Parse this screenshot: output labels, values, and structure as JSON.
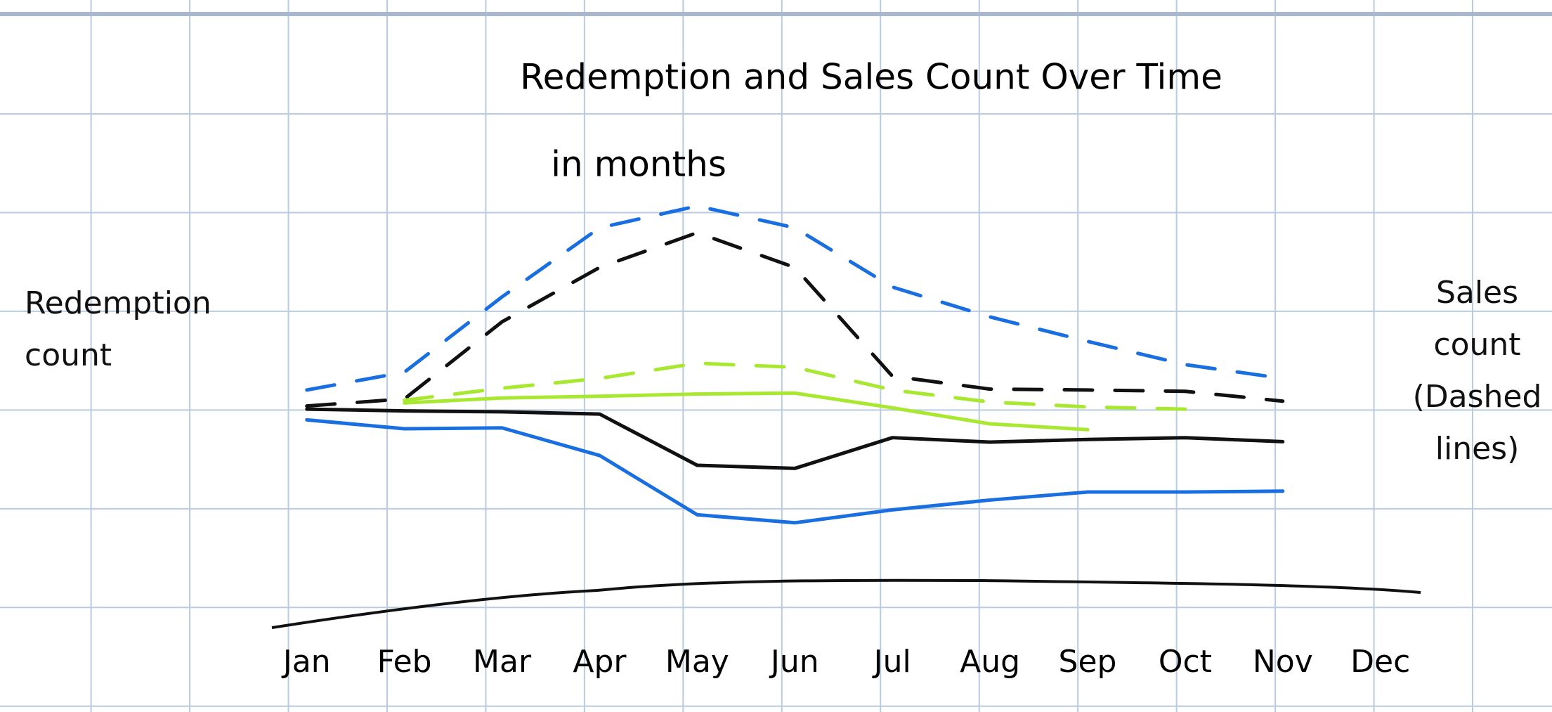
{
  "chart_data": {
    "type": "line",
    "title": "Redemption and Sales Count Over Time",
    "subtitle": "in months",
    "y_label": "Redemption count",
    "y2_label": "Sales count (Dashed lines)",
    "categories": [
      "Jan",
      "Feb",
      "Mar",
      "Apr",
      "May",
      "Jun",
      "Jul",
      "Aug",
      "Sep",
      "Oct",
      "Nov",
      "Dec"
    ],
    "ylim": [
      0,
      100
    ],
    "y2lim": [
      0,
      100
    ],
    "series": [
      {
        "color": "#111111",
        "values": [
          50.4,
          50,
          49.8,
          49.3,
          37.8,
          37.1,
          44,
          43,
          43.6,
          44,
          43.1,
          null
        ]
      },
      {
        "color": "#1a6fe0",
        "values": [
          48,
          46,
          46.2,
          40,
          26.7,
          24.9,
          27.8,
          30,
          31.8,
          31.8,
          32,
          null
        ]
      },
      {
        "color": "#a8e830",
        "values": [
          null,
          51.8,
          52.9,
          53.3,
          53.8,
          54,
          50.7,
          47.1,
          45.8,
          null,
          null,
          null
        ]
      },
      {
        "color": "#111111",
        "axis": "y2",
        "dashed": true,
        "values": [
          51.1,
          52.7,
          70,
          82.2,
          90,
          82.2,
          57.8,
          54.9,
          54.7,
          54.4,
          52.2,
          null
        ]
      },
      {
        "color": "#1a6fe0",
        "axis": "y2",
        "dashed": true,
        "values": [
          54.7,
          58.7,
          75.6,
          91.1,
          96,
          91.1,
          77.8,
          71.1,
          65.6,
          60.4,
          57.3,
          null
        ]
      },
      {
        "color": "#a8e830",
        "axis": "y2",
        "dashed": true,
        "values": [
          null,
          52.4,
          55.1,
          57.3,
          60.7,
          59.8,
          54.7,
          52,
          50.9,
          50.4,
          null,
          null
        ]
      }
    ]
  }
}
